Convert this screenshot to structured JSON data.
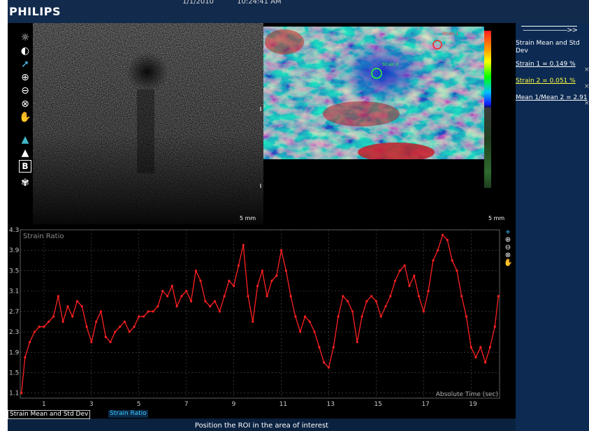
{
  "header": {
    "logo": "PHILIPS",
    "date": "1/1/2010",
    "time": "10:24:41 AM"
  },
  "image_area": {
    "left_scale": "5 mm",
    "right_scale": "5 mm",
    "roi_label_1": "Strain 1",
    "roi_label_2": "Strain 2"
  },
  "toolbar": {
    "items": [
      {
        "name": "brightness-icon",
        "glyph": "☼"
      },
      {
        "name": "contrast-icon",
        "glyph": "◐"
      },
      {
        "name": "pointer-icon",
        "glyph": "➚"
      },
      {
        "name": "zoom-in-icon",
        "glyph": "⊕"
      },
      {
        "name": "zoom-out-icon",
        "glyph": "⊖"
      },
      {
        "name": "reset-icon",
        "glyph": "⊗"
      },
      {
        "name": "pan-hand-icon",
        "glyph": "✋"
      },
      {
        "name": "probe-color-icon",
        "glyph": "▲"
      },
      {
        "name": "probe-gray-icon",
        "glyph": "▲"
      },
      {
        "name": "bmode-icon",
        "glyph": "B"
      },
      {
        "name": "brain-icon",
        "glyph": "✾"
      }
    ]
  },
  "right_panel": {
    "arrow": "———————>>",
    "title": "Strain Mean and Std Dev",
    "items": [
      {
        "label": "Strain 1 = 0.149 %",
        "color": "#ffffff"
      },
      {
        "label": "Strain 2 = 0.051 %",
        "color": "#ffff40"
      },
      {
        "label": "Mean 1/Mean 2 = 2.91",
        "color": "#ffffff"
      }
    ],
    "close_glyph": "×"
  },
  "chart_data": {
    "type": "line",
    "title": "Strain Ratio",
    "xlabel": "Absolute Time (sec)",
    "ylabel": "",
    "xlim": [
      0,
      20.2
    ],
    "ylim": [
      1.0,
      4.3
    ],
    "x_ticks": [
      1,
      3,
      5,
      7,
      9,
      11,
      13,
      15,
      17,
      19
    ],
    "y_ticks": [
      1.1,
      1.5,
      1.9,
      2.3,
      2.7,
      3.1,
      3.5,
      3.9,
      4.3
    ],
    "grid": true,
    "series": [
      {
        "color": "#ff2020",
        "x": [
          0.05,
          0.2,
          0.4,
          0.6,
          0.8,
          1.0,
          1.2,
          1.4,
          1.6,
          1.8,
          2.0,
          2.2,
          2.4,
          2.6,
          2.8,
          3.0,
          3.2,
          3.4,
          3.6,
          3.8,
          4.0,
          4.2,
          4.4,
          4.6,
          4.8,
          5.0,
          5.2,
          5.4,
          5.6,
          5.8,
          6.0,
          6.2,
          6.4,
          6.6,
          6.8,
          7.0,
          7.2,
          7.4,
          7.6,
          7.8,
          8.0,
          8.2,
          8.4,
          8.6,
          8.8,
          9.0,
          9.2,
          9.4,
          9.6,
          9.8,
          10.0,
          10.2,
          10.4,
          10.6,
          10.8,
          11.0,
          11.2,
          11.4,
          11.6,
          11.8,
          12.0,
          12.2,
          12.4,
          12.6,
          12.8,
          13.0,
          13.2,
          13.4,
          13.6,
          13.8,
          14.0,
          14.2,
          14.4,
          14.6,
          14.8,
          15.0,
          15.2,
          15.4,
          15.6,
          15.8,
          16.0,
          16.2,
          16.4,
          16.6,
          16.8,
          17.0,
          17.2,
          17.4,
          17.6,
          17.8,
          18.0,
          18.2,
          18.4,
          18.6,
          18.8,
          19.0,
          19.2,
          19.4,
          19.6,
          19.8,
          20.0,
          20.15
        ],
        "y": [
          1.1,
          1.8,
          2.1,
          2.3,
          2.4,
          2.4,
          2.5,
          2.6,
          3.0,
          2.5,
          2.8,
          2.6,
          2.9,
          2.8,
          2.4,
          2.1,
          2.5,
          2.7,
          2.2,
          2.1,
          2.3,
          2.4,
          2.5,
          2.3,
          2.4,
          2.6,
          2.6,
          2.7,
          2.7,
          2.8,
          3.1,
          3.0,
          3.2,
          2.8,
          3.0,
          3.1,
          2.9,
          3.5,
          3.3,
          2.9,
          2.8,
          2.9,
          2.7,
          3.0,
          3.3,
          3.2,
          3.6,
          4.0,
          3.0,
          2.5,
          3.2,
          3.5,
          3.0,
          3.3,
          3.4,
          3.9,
          3.5,
          3.0,
          2.6,
          2.3,
          2.6,
          2.5,
          2.3,
          2.0,
          1.7,
          1.6,
          2.0,
          2.6,
          3.0,
          2.9,
          2.7,
          2.1,
          2.6,
          2.9,
          3.0,
          2.9,
          2.6,
          2.8,
          3.0,
          3.3,
          3.5,
          3.6,
          3.2,
          3.4,
          3.0,
          2.7,
          3.1,
          3.7,
          3.9,
          4.2,
          4.1,
          3.7,
          3.5,
          3.0,
          2.6,
          2.0,
          1.8,
          2.0,
          1.7,
          2.0,
          2.4,
          3.0
        ]
      }
    ]
  },
  "tabs": {
    "tab1": "Strain Mean and Std Dev",
    "tab2": "Strain Ratio"
  },
  "status": {
    "message": "Position the ROI in the area of interest"
  },
  "chart_tools": [
    {
      "name": "chart-add-icon",
      "glyph": "+"
    },
    {
      "name": "chart-zoom-in-icon",
      "glyph": "⊕"
    },
    {
      "name": "chart-zoom-out-icon",
      "glyph": "⊖"
    },
    {
      "name": "chart-reset-icon",
      "glyph": "⊗"
    },
    {
      "name": "chart-pan-icon",
      "glyph": "✋"
    }
  ]
}
